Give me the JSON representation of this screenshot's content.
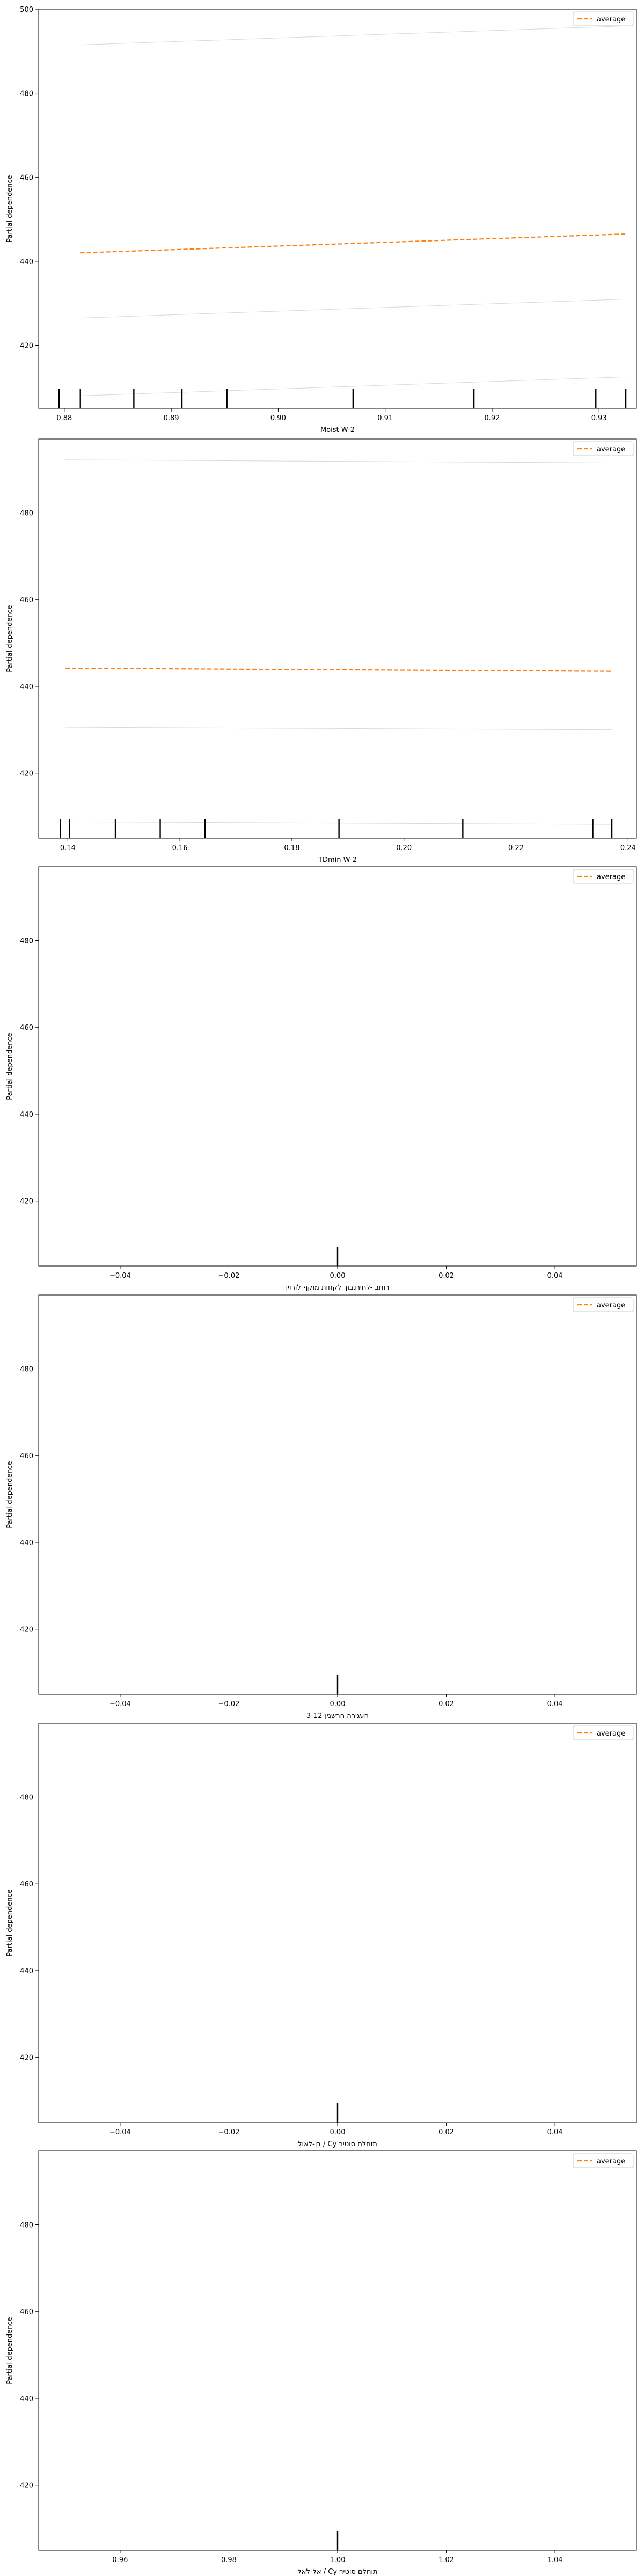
{
  "colors": {
    "average": "#ff7f0e",
    "ice": "#d9d9d9",
    "axis": "#000000",
    "rug": "#000000"
  },
  "chart_data": [
    {
      "type": "line",
      "xlabel": "Moist W-2",
      "ylabel": "Partial dependence",
      "legend": "top-right",
      "legend_label": "average",
      "grid": false,
      "xlim": [
        0.8776,
        0.9335
      ],
      "ylim": [
        405,
        500
      ],
      "xticks": [
        0.88,
        0.89,
        0.9,
        0.91,
        0.92,
        0.93
      ],
      "xtick_labels": [
        "0.88",
        "0.89",
        "0.90",
        "0.91",
        "0.92",
        "0.93"
      ],
      "yticks": [
        420,
        440,
        460,
        480,
        500
      ],
      "average": {
        "x": [
          0.8815,
          0.9325
        ],
        "y": [
          442,
          446.5
        ]
      },
      "ice": [
        {
          "x": [
            0.8815,
            0.9325
          ],
          "y": [
            491.5,
            496
          ]
        },
        {
          "x": [
            0.8815,
            0.9325
          ],
          "y": [
            426.5,
            431
          ]
        },
        {
          "x": [
            0.8815,
            0.9325
          ],
          "y": [
            408,
            412.5
          ]
        }
      ],
      "rug": [
        0.8795,
        0.8815,
        0.8865,
        0.891,
        0.8952,
        0.907,
        0.9183,
        0.9297,
        0.9325
      ]
    },
    {
      "type": "line",
      "xlabel": "TDmin W-2",
      "ylabel": "Partial dependence",
      "legend": "top-right",
      "legend_label": "average",
      "grid": false,
      "xlim": [
        0.1348,
        0.2415
      ],
      "ylim": [
        405,
        497
      ],
      "xticks": [
        0.14,
        0.16,
        0.18,
        0.2,
        0.22,
        0.24
      ],
      "xtick_labels": [
        "0.14",
        "0.16",
        "0.18",
        "0.20",
        "0.22",
        "0.24"
      ],
      "yticks": [
        420,
        440,
        460,
        480
      ],
      "average": {
        "x": [
          0.1396,
          0.2371
        ],
        "y": [
          444.2,
          443.5
        ]
      },
      "ice": [
        {
          "x": [
            0.1396,
            0.2371
          ],
          "y": [
            492.2,
            491.5
          ]
        },
        {
          "x": [
            0.1396,
            0.2371
          ],
          "y": [
            430.6,
            430
          ]
        },
        {
          "x": [
            0.1396,
            0.2371
          ],
          "y": [
            408.8,
            408.2
          ]
        }
      ],
      "rug": [
        0.1387,
        0.1403,
        0.1485,
        0.1565,
        0.1645,
        0.1884,
        0.2105,
        0.2337,
        0.2371
      ]
    },
    {
      "type": "line",
      "xlabel": "רוחב -לחירנבוך לקחות מוקף לורוין",
      "ylabel": "Partial dependence",
      "legend": "top-right",
      "legend_label": "average",
      "grid": false,
      "xlim": [
        -0.055,
        0.055
      ],
      "ylim": [
        405,
        497
      ],
      "xticks": [
        -0.04,
        -0.02,
        0,
        0.02,
        0.04
      ],
      "xtick_labels": [
        "−0.04",
        "−0.02",
        "0.00",
        "0.02",
        "0.04"
      ],
      "yticks": [
        420,
        440,
        460,
        480
      ],
      "rug": [
        0
      ]
    },
    {
      "type": "line",
      "xlabel": "3-12-העגירה חרשגין",
      "ylabel": "Partial dependence",
      "legend": "top-right",
      "legend_label": "average",
      "grid": false,
      "xlim": [
        -0.055,
        0.055
      ],
      "ylim": [
        405,
        497
      ],
      "xticks": [
        -0.04,
        -0.02,
        0,
        0.02,
        0.04
      ],
      "xtick_labels": [
        "−0.04",
        "−0.02",
        "0.00",
        "0.02",
        "0.04"
      ],
      "yticks": [
        420,
        440,
        460,
        480
      ],
      "rug": [
        0
      ]
    },
    {
      "type": "line",
      "xlabel": "בן-לאול / Cy תוחלם סוטיר",
      "ylabel": "Partial dependence",
      "legend": "top-right",
      "legend_label": "average",
      "grid": false,
      "xlim": [
        -0.055,
        0.055
      ],
      "ylim": [
        405,
        497
      ],
      "xticks": [
        -0.04,
        -0.02,
        0,
        0.02,
        0.04
      ],
      "xtick_labels": [
        "−0.04",
        "−0.02",
        "0.00",
        "0.02",
        "0.04"
      ],
      "yticks": [
        420,
        440,
        460,
        480
      ],
      "rug": [
        0
      ]
    },
    {
      "type": "line",
      "xlabel": "אל-לאל / Cy תוחלם סוטיר",
      "ylabel": "Partial dependence",
      "legend": "top-right",
      "legend_label": "average",
      "grid": false,
      "xlim": [
        0.945,
        1.055
      ],
      "ylim": [
        405,
        497
      ],
      "xticks": [
        0.96,
        0.98,
        1,
        1.02,
        1.04
      ],
      "xtick_labels": [
        "0.96",
        "0.98",
        "1.00",
        "1.02",
        "1.04"
      ],
      "yticks": [
        420,
        440,
        460,
        480
      ],
      "rug": [
        1
      ]
    }
  ]
}
